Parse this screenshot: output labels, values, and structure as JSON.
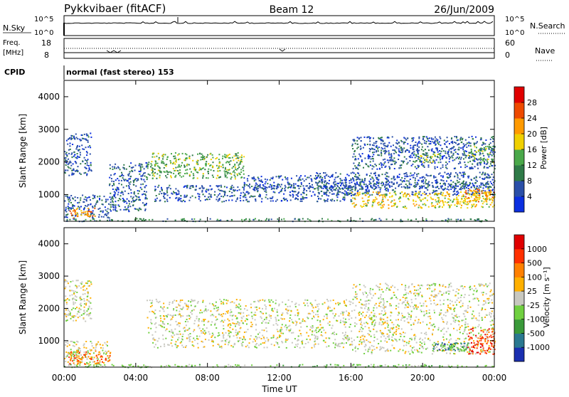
{
  "header": {
    "radar": "Pykkvibaer (fitACF)",
    "beam": "Beam 12",
    "date": "26/Jun/2009"
  },
  "nsky_panel": {
    "left_label": "N.Sky",
    "left_ticks": [
      "10^5",
      "10^0"
    ],
    "right_ticks": [
      "10^5",
      "10^0"
    ],
    "right_label": "N.Search",
    "line_style": "solid"
  },
  "freq_panel": {
    "left_label_top": "Freq.",
    "left_label_bottom": "[MHz]",
    "left_ticks": [
      "18",
      "8"
    ],
    "right_ticks": [
      "60",
      "0"
    ],
    "right_label": "Nave",
    "line_style": "dotted"
  },
  "cpid": {
    "label": "CPID",
    "text": "normal (fast stereo) 153"
  },
  "chart_data": [
    {
      "type": "heatmap",
      "name": "power",
      "ylabel": "Slant Range [km]",
      "ylim": [
        180,
        4500
      ],
      "yticks": [
        "1000",
        "2000",
        "3000",
        "4000"
      ],
      "xlim_hours": [
        0,
        24
      ],
      "colorbar": {
        "label": "Power [dB]",
        "ticks": [
          "4",
          "8",
          "12",
          "16",
          "20",
          "24",
          "28"
        ],
        "colors": [
          "#0b2fe0",
          "#2a4fa8",
          "#2f7a48",
          "#4aa84a",
          "#f0d000",
          "#ff9a00",
          "#ee4a00",
          "#e00000"
        ]
      },
      "features_hours_km": [
        {
          "x0": 0,
          "x1": 24,
          "y0": 190,
          "y1": 280,
          "level": 2
        },
        {
          "x0": 0,
          "x1": 2.5,
          "y0": 280,
          "y1": 1000,
          "level": 1
        },
        {
          "x0": 0.2,
          "x1": 1.7,
          "y0": 300,
          "y1": 600,
          "level": 5
        },
        {
          "x0": 0,
          "x1": 1.5,
          "y0": 1600,
          "y1": 2900,
          "level": 1
        },
        {
          "x0": 2.5,
          "x1": 4.6,
          "y0": 500,
          "y1": 2000,
          "level": 1
        },
        {
          "x0": 4.6,
          "x1": 10,
          "y0": 1500,
          "y1": 2300,
          "level": 3
        },
        {
          "x0": 10,
          "x1": 14.5,
          "y0": 1200,
          "y1": 1600,
          "level": 1
        },
        {
          "x0": 5,
          "x1": 16,
          "y0": 800,
          "y1": 1300,
          "level": 1
        },
        {
          "x0": 14.5,
          "x1": 24,
          "y0": 1000,
          "y1": 1400,
          "level": 1
        },
        {
          "x0": 16,
          "x1": 24,
          "y0": 1800,
          "y1": 2800,
          "level": 1
        },
        {
          "x0": 19.5,
          "x1": 21,
          "y0": 2000,
          "y1": 2300,
          "level": 3
        },
        {
          "x0": 22.5,
          "x1": 24,
          "y0": 2000,
          "y1": 2500,
          "level": 3
        },
        {
          "x0": 16,
          "x1": 24,
          "y0": 600,
          "y1": 1100,
          "level": 4
        },
        {
          "x0": 22.3,
          "x1": 24,
          "y0": 800,
          "y1": 1200,
          "level": 5
        },
        {
          "x0": 14,
          "x1": 24,
          "y0": 1200,
          "y1": 1700,
          "level": 1
        }
      ]
    },
    {
      "type": "heatmap",
      "name": "velocity",
      "ylabel": "Slant Range [km]",
      "ylim": [
        180,
        4500
      ],
      "yticks": [
        "1000",
        "2000",
        "3000",
        "4000"
      ],
      "xlim_hours": [
        0,
        24
      ],
      "xticks": [
        "00:00",
        "04:00",
        "08:00",
        "12:00",
        "16:00",
        "20:00",
        "00:00"
      ],
      "xlabel": "Time UT",
      "colorbar": {
        "label": "Velocity [m s^-1]",
        "ticks": [
          "1000",
          "500",
          "100",
          "25",
          "-25",
          "-100",
          "-500",
          "-1000"
        ],
        "colors": [
          "#1a2fb0",
          "#2a7890",
          "#3a9a3a",
          "#70d040",
          "#c8c8c0",
          "#ffb000",
          "#ff8000",
          "#ff3000",
          "#e00000"
        ]
      },
      "features_hours_km": [
        {
          "x0": 0,
          "x1": 24,
          "y0": 190,
          "y1": 280,
          "level": 3
        },
        {
          "x0": 0,
          "x1": 2.5,
          "y0": 280,
          "y1": 1000,
          "level": 4
        },
        {
          "x0": 0.2,
          "x1": 2.6,
          "y0": 300,
          "y1": 700,
          "level": 6
        },
        {
          "x0": 0,
          "x1": 1.5,
          "y0": 1600,
          "y1": 2900,
          "level": 4
        },
        {
          "x0": 4.6,
          "x1": 16,
          "y0": 800,
          "y1": 2300,
          "level": 4
        },
        {
          "x0": 16,
          "x1": 24,
          "y0": 600,
          "y1": 2800,
          "level": 4
        },
        {
          "x0": 20.5,
          "x1": 22.5,
          "y0": 700,
          "y1": 950,
          "level": 1
        },
        {
          "x0": 22.5,
          "x1": 24,
          "y0": 600,
          "y1": 1400,
          "level": 7
        },
        {
          "x0": 21,
          "x1": 22.5,
          "y0": 700,
          "y1": 900,
          "level": 3
        }
      ]
    }
  ]
}
